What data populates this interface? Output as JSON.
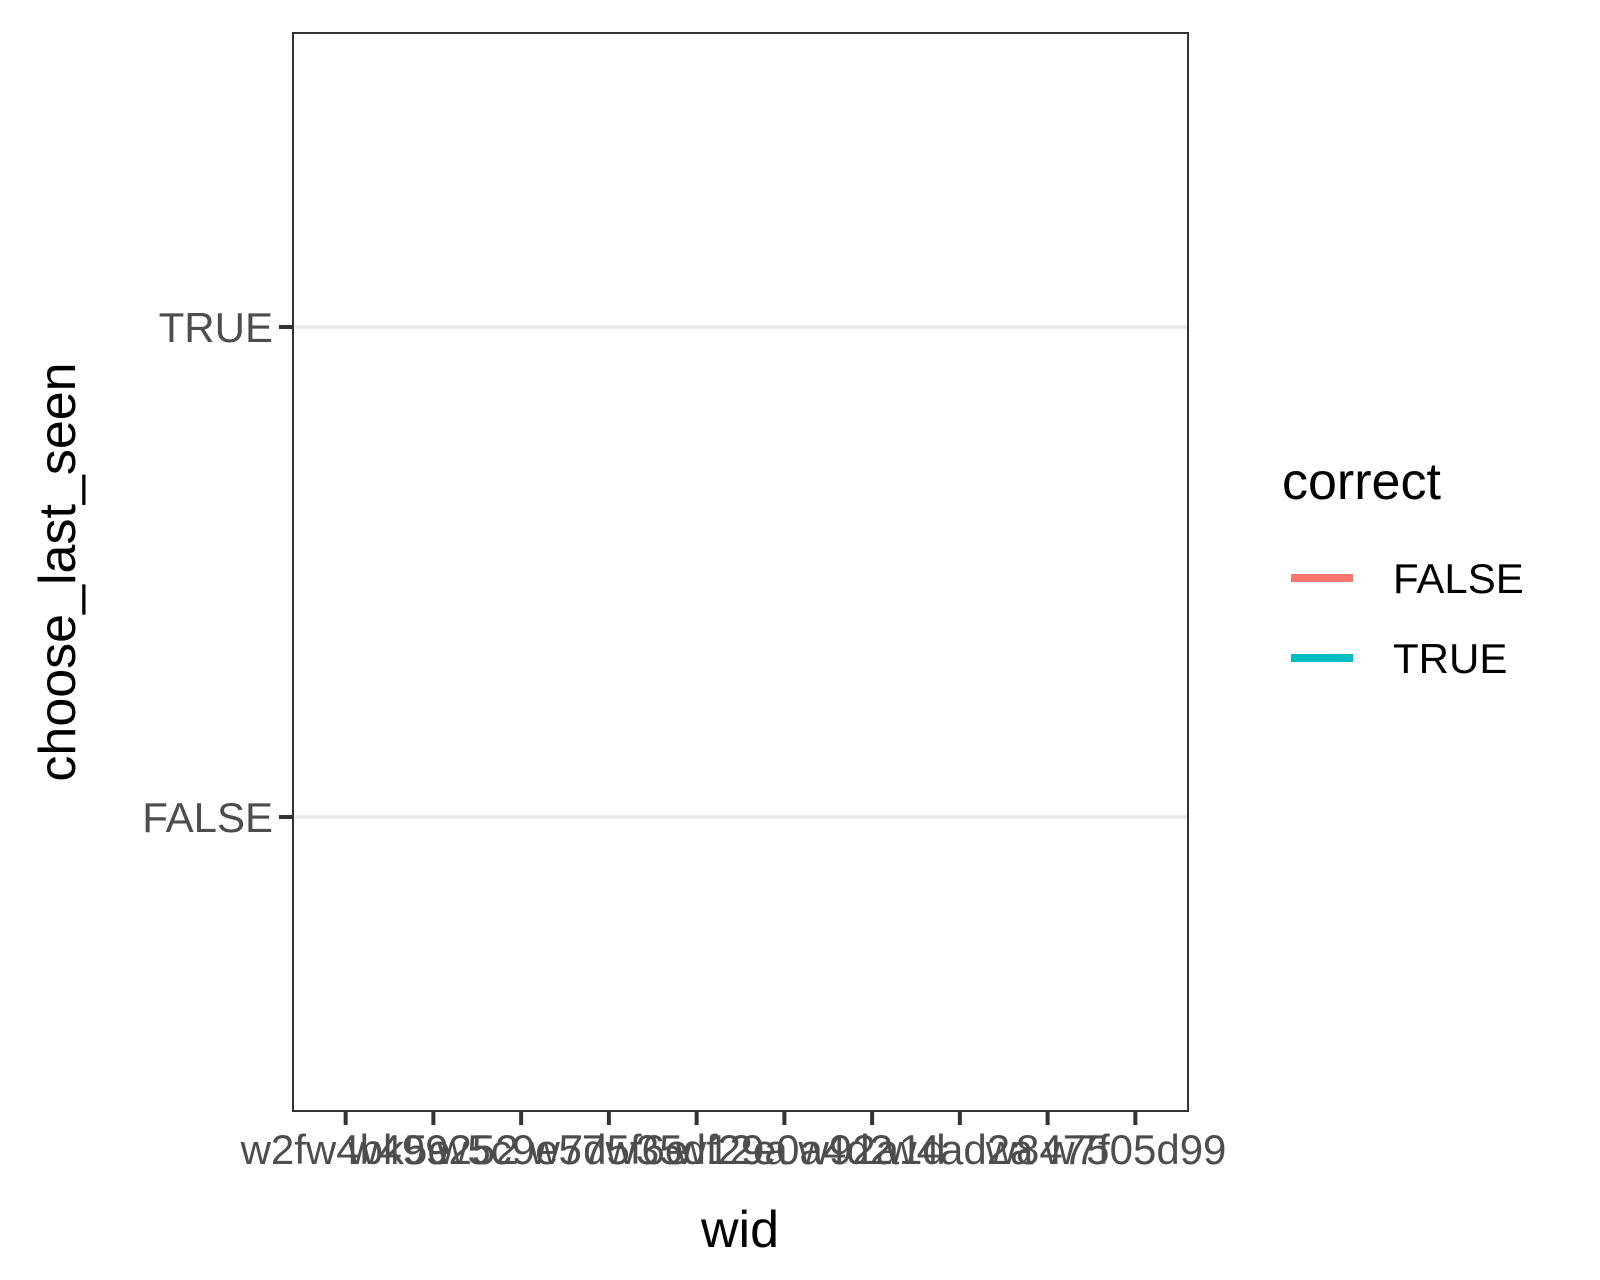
{
  "chart_data": {
    "type": "line",
    "title": "",
    "xlabel": "wid",
    "ylabel": "choose_last_seen",
    "x_ticks": [
      "w2fw4bk5e",
      "w499252",
      "w5c9e57",
      "w7d5f6e",
      "w35df29a",
      "w12e0a4d2",
      "w92a1d",
      "w4ad2a",
      "w8475",
      "w7f05d99"
    ],
    "y_categories": [
      "FALSE",
      "TRUE"
    ],
    "series": [],
    "grid": true,
    "legend": {
      "title": "correct",
      "position": "right",
      "items": [
        {
          "label": "FALSE",
          "color": "#F8766D"
        },
        {
          "label": "TRUE",
          "color": "#00BFC4"
        }
      ]
    }
  }
}
